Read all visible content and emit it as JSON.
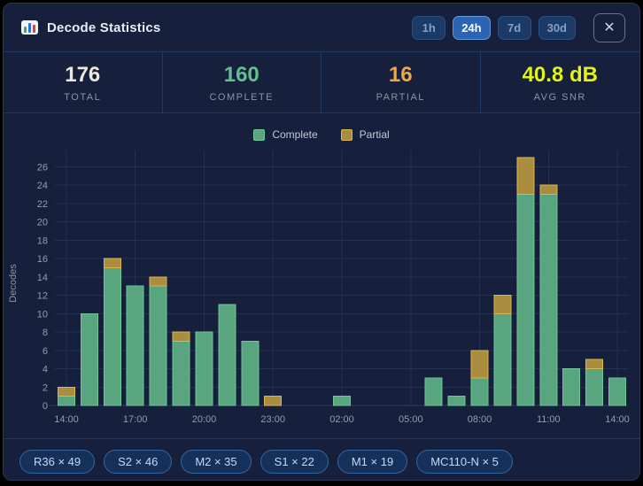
{
  "header": {
    "title": "Decode Statistics",
    "time_ranges": [
      {
        "label": "1h",
        "active": false
      },
      {
        "label": "24h",
        "active": true
      },
      {
        "label": "7d",
        "active": false
      },
      {
        "label": "30d",
        "active": false
      }
    ],
    "close_label": "✕"
  },
  "colors": {
    "total": "#ece8dc",
    "complete": "#63c08d",
    "partial": "#eda743",
    "avg_snr": "#e2f318"
  },
  "stats": {
    "total": {
      "value": "176",
      "label": "TOTAL"
    },
    "complete": {
      "value": "160",
      "label": "COMPLETE"
    },
    "partial": {
      "value": "16",
      "label": "PARTIAL"
    },
    "avg_snr": {
      "value": "40.8 dB",
      "label": "AVG SNR"
    }
  },
  "chart_data": {
    "type": "bar",
    "stacked": true,
    "x": [
      "14:00",
      "15:00",
      "16:00",
      "17:00",
      "18:00",
      "19:00",
      "20:00",
      "21:00",
      "22:00",
      "23:00",
      "00:00",
      "01:00",
      "02:00",
      "03:00",
      "04:00",
      "05:00",
      "06:00",
      "07:00",
      "08:00",
      "09:00",
      "10:00",
      "11:00",
      "12:00",
      "13:00",
      "14:00"
    ],
    "tick_every": 3,
    "series": [
      {
        "name": "Complete",
        "color": "#58a580",
        "border": "#6fc79a",
        "values": [
          1,
          10,
          15,
          13,
          13,
          7,
          8,
          11,
          7,
          0,
          0,
          0,
          1,
          0,
          0,
          0,
          3,
          1,
          3,
          10,
          23,
          23,
          4,
          4,
          3
        ]
      },
      {
        "name": "Partial",
        "color": "#ab8d3f",
        "border": "#d8b750",
        "values": [
          1,
          0,
          1,
          0,
          1,
          1,
          0,
          0,
          0,
          1,
          0,
          0,
          0,
          0,
          0,
          0,
          0,
          0,
          3,
          2,
          4,
          1,
          0,
          1,
          0
        ]
      }
    ],
    "ylabel": "Decodes",
    "ylim": [
      0,
      27
    ],
    "yticks": [
      0,
      2,
      4,
      6,
      8,
      10,
      12,
      14,
      16,
      18,
      20,
      22,
      24,
      26
    ],
    "grid": true,
    "legend_position": "top-center"
  },
  "chips": [
    "R36 × 49",
    "S2 × 46",
    "M2 × 35",
    "S1 × 22",
    "M1 × 19",
    "MC110-N × 5"
  ]
}
